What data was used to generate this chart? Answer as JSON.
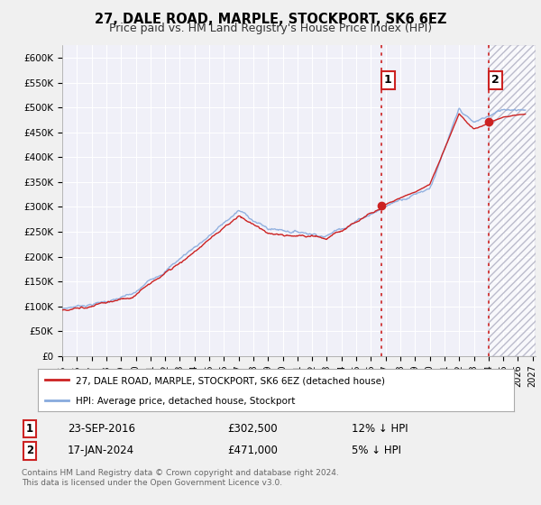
{
  "title": "27, DALE ROAD, MARPLE, STOCKPORT, SK6 6EZ",
  "subtitle": "Price paid vs. HM Land Registry's House Price Index (HPI)",
  "ylabel_ticks": [
    "£0",
    "£50K",
    "£100K",
    "£150K",
    "£200K",
    "£250K",
    "£300K",
    "£350K",
    "£400K",
    "£450K",
    "£500K",
    "£550K",
    "£600K"
  ],
  "ytick_values": [
    0,
    50000,
    100000,
    150000,
    200000,
    250000,
    300000,
    350000,
    400000,
    450000,
    500000,
    550000,
    600000
  ],
  "ylim": [
    0,
    625000
  ],
  "xlim_start": 1995.0,
  "xlim_end": 2027.2,
  "background_color": "#f0f0f0",
  "plot_bg_color": "#f0f0f8",
  "grid_color": "#ffffff",
  "hpi_color": "#88aadd",
  "price_color": "#cc2222",
  "sale1_date": 2016.73,
  "sale1_price": 302500,
  "sale2_date": 2024.04,
  "sale2_price": 471000,
  "sale1_label": "1",
  "sale2_label": "2",
  "legend_line1": "27, DALE ROAD, MARPLE, STOCKPORT, SK6 6EZ (detached house)",
  "legend_line2": "HPI: Average price, detached house, Stockport",
  "footer": "Contains HM Land Registry data © Crown copyright and database right 2024.\nThis data is licensed under the Open Government Licence v3.0.",
  "vline_color": "#cc2222",
  "marker_color": "#cc2222",
  "hatch_color": "#bbbbcc"
}
